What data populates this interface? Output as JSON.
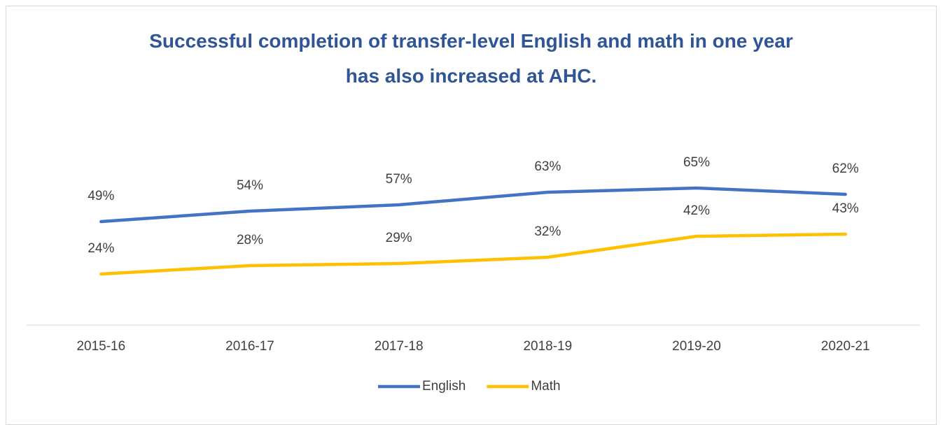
{
  "chart_data": {
    "type": "line",
    "title": "Successful completion of transfer-level English and math in one year has also increased at AHC.",
    "categories": [
      "2015-16",
      "2016-17",
      "2017-18",
      "2018-19",
      "2019-20",
      "2020-21"
    ],
    "series": [
      {
        "name": "English",
        "color": "#4472c4",
        "values": [
          49,
          54,
          57,
          63,
          65,
          62
        ],
        "value_labels": [
          "49%",
          "54%",
          "57%",
          "63%",
          "65%",
          "62%"
        ]
      },
      {
        "name": "Math",
        "color": "#ffc000",
        "values": [
          24,
          28,
          29,
          32,
          42,
          43
        ],
        "value_labels": [
          "24%",
          "28%",
          "29%",
          "32%",
          "42%",
          "43%"
        ]
      }
    ],
    "ylim": [
      0,
      100
    ],
    "legend": "bottom"
  }
}
